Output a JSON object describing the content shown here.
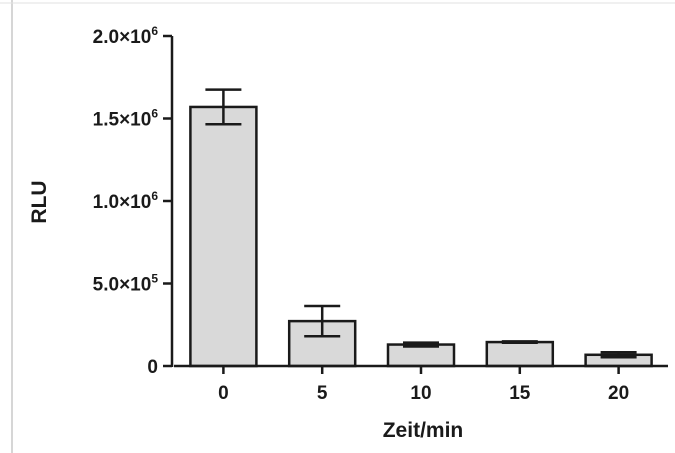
{
  "chart_data": {
    "type": "bar",
    "categories": [
      "0",
      "5",
      "10",
      "15",
      "20"
    ],
    "values": [
      1570000,
      272000,
      130000,
      145000,
      68000
    ],
    "errors": [
      105000,
      92000,
      12000,
      4000,
      15000
    ],
    "xlabel": "Zeit/min",
    "ylabel": "RLU",
    "ylim": [
      0,
      2000000
    ],
    "yticks": [
      {
        "value": 0,
        "mantissa": "0",
        "times": "",
        "base": "",
        "exp": ""
      },
      {
        "value": 500000,
        "mantissa": "5.0",
        "times": "×",
        "base": "10",
        "exp": "5"
      },
      {
        "value": 1000000,
        "mantissa": "1.0",
        "times": "×",
        "base": "10",
        "exp": "6"
      },
      {
        "value": 1500000,
        "mantissa": "1.5",
        "times": "×",
        "base": "10",
        "exp": "6"
      },
      {
        "value": 2000000,
        "mantissa": "2.0",
        "times": "×",
        "base": "10",
        "exp": "6"
      }
    ],
    "grid": false,
    "bar_color": "#d9d9d9",
    "edge_color": "#1a1a1a"
  }
}
